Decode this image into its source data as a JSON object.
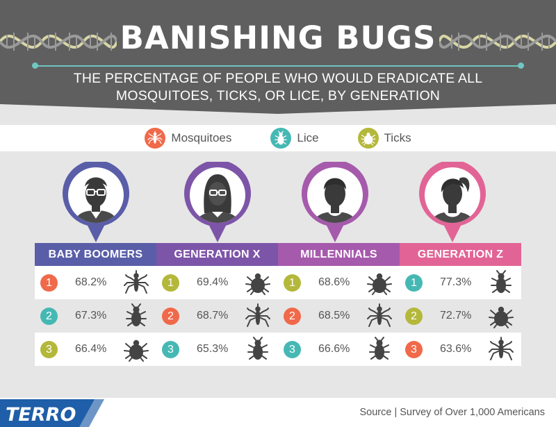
{
  "header": {
    "title": "BANISHING BUGS",
    "subtitle_line1": "THE PERCENTAGE OF PEOPLE WHO WOULD ERADICATE ALL",
    "subtitle_line2": "MOSQUITOES, TICKS, OR LICE, BY GENERATION"
  },
  "legend": [
    {
      "label": "Mosquitoes",
      "color": "#f0694a",
      "icon": "mosquito-icon"
    },
    {
      "label": "Lice",
      "color": "#46b8b4",
      "icon": "louse-icon"
    },
    {
      "label": "Ticks",
      "color": "#b4b83a",
      "icon": "tick-icon"
    }
  ],
  "colors": {
    "mosquitoes": "#f0694a",
    "lice": "#46b8b4",
    "ticks": "#b4b83a"
  },
  "chart_data": {
    "type": "table",
    "unit": "%",
    "groups": [
      {
        "name": "BABY BOOMERS",
        "color": "#5a5ea8",
        "rows": [
          {
            "rank": "1",
            "value": "68.2%",
            "bug": "mosquito"
          },
          {
            "rank": "2",
            "value": "67.3%",
            "bug": "louse"
          },
          {
            "rank": "3",
            "value": "66.4%",
            "bug": "tick"
          }
        ]
      },
      {
        "name": "GENERATION X",
        "color": "#7d55a8",
        "rows": [
          {
            "rank": "1",
            "value": "69.4%",
            "bug": "tick"
          },
          {
            "rank": "2",
            "value": "68.7%",
            "bug": "mosquito"
          },
          {
            "rank": "3",
            "value": "65.3%",
            "bug": "louse"
          }
        ]
      },
      {
        "name": "MILLENNIALS",
        "color": "#a65aac",
        "rows": [
          {
            "rank": "1",
            "value": "68.6%",
            "bug": "tick"
          },
          {
            "rank": "2",
            "value": "68.5%",
            "bug": "mosquito"
          },
          {
            "rank": "3",
            "value": "66.6%",
            "bug": "louse"
          }
        ]
      },
      {
        "name": "GENERATION Z",
        "color": "#e26496",
        "rows": [
          {
            "rank": "1",
            "value": "77.3%",
            "bug": "louse"
          },
          {
            "rank": "2",
            "value": "72.7%",
            "bug": "tick"
          },
          {
            "rank": "3",
            "value": "63.6%",
            "bug": "mosquito"
          }
        ]
      }
    ]
  },
  "footer": {
    "logo_text": "TERRO",
    "source": "Source | Survey of Over 1,000 Americans"
  }
}
